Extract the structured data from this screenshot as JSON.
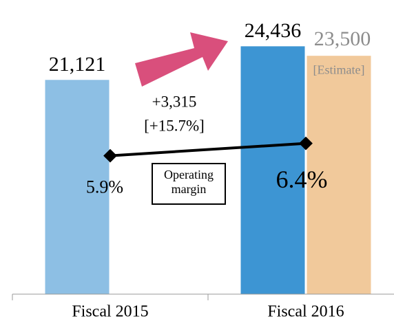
{
  "chart_data": {
    "type": "bar",
    "categories": [
      "Fiscal 2015",
      "Fiscal 2016"
    ],
    "values": [
      21121,
      24436
    ],
    "value_labels": [
      "21,121",
      "24,436"
    ],
    "colors": [
      "#8dbfe4",
      "#3d95d3"
    ],
    "estimate": {
      "label": "[Estimate]",
      "value": 23500,
      "value_label": "23,500",
      "color": "#f1c99b"
    },
    "ylim": [
      0,
      29000
    ],
    "margin": {
      "name": "Operating margin",
      "values": [
        5.9,
        6.4
      ],
      "value_labels": [
        "5.9%",
        "6.4%"
      ],
      "axis": "y2",
      "color": "#000000"
    },
    "y2lim": [
      0.3,
      12.2
    ],
    "annotations": [
      "+3,315",
      "[+15.7%]"
    ]
  }
}
